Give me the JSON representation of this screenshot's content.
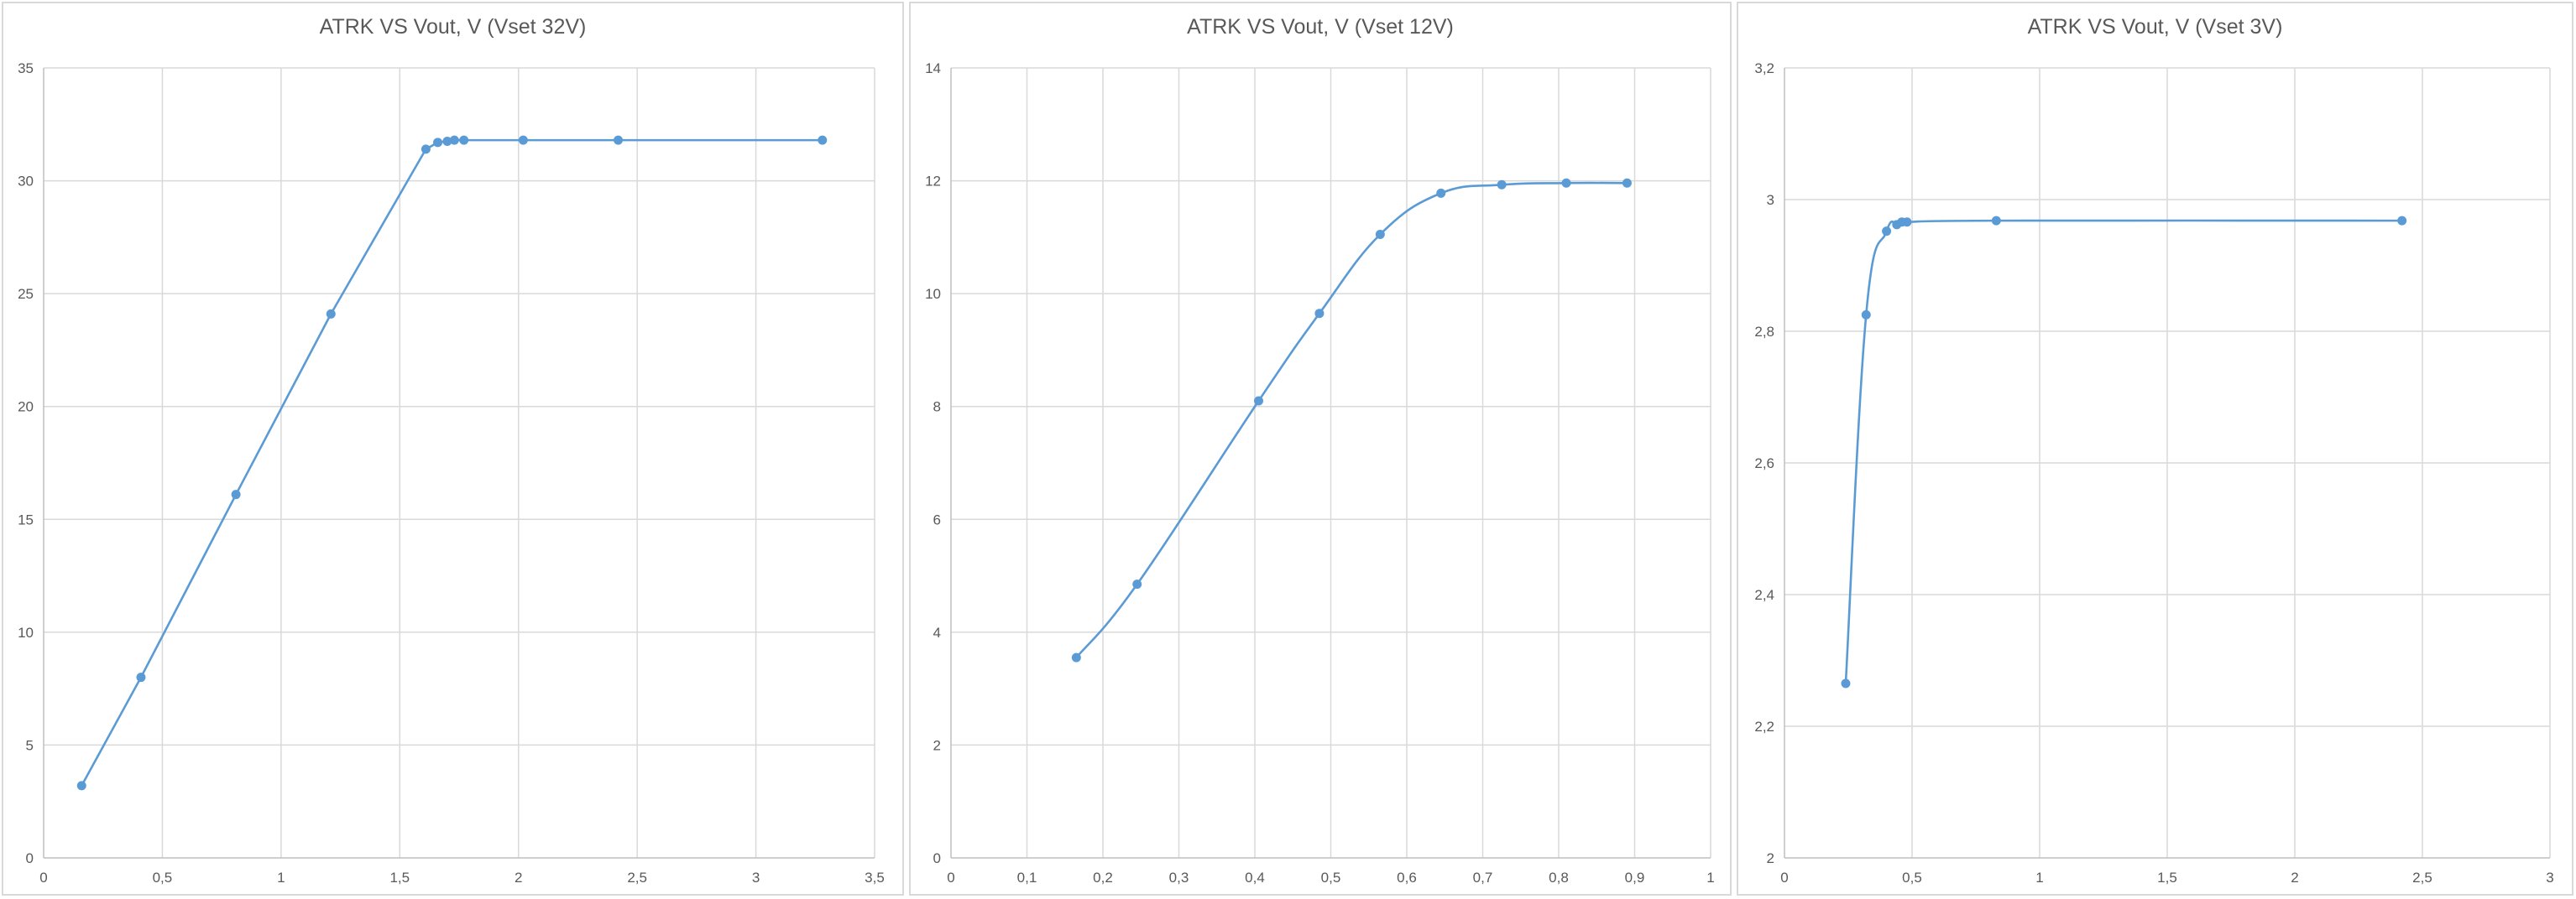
{
  "chart_data": [
    {
      "type": "line",
      "smooth": false,
      "title": "ATRK VS Vout, V (Vset 32V)",
      "xlabel": "",
      "ylabel": "",
      "xlim": [
        0,
        3.5
      ],
      "ylim": [
        0,
        35
      ],
      "xticks": [
        0,
        0.5,
        1,
        1.5,
        2,
        2.5,
        3,
        3.5
      ],
      "yticks": [
        0,
        5,
        10,
        15,
        20,
        25,
        30,
        35
      ],
      "xtick_labels": [
        "0",
        "0,5",
        "1",
        "1,5",
        "2",
        "2,5",
        "3",
        "3,5"
      ],
      "ytick_labels": [
        "0",
        "5",
        "10",
        "15",
        "20",
        "25",
        "30",
        "35"
      ],
      "grid": true,
      "legend": false,
      "color": "#5b9bd5",
      "series": [
        {
          "x": [
            0.16,
            0.41,
            0.81,
            1.21,
            1.61,
            1.66,
            1.7,
            1.73,
            1.77,
            2.02,
            2.42,
            3.28
          ],
          "y": [
            3.2,
            8.0,
            16.1,
            24.1,
            31.4,
            31.7,
            31.75,
            31.8,
            31.8,
            31.8,
            31.8,
            31.8
          ]
        }
      ]
    },
    {
      "type": "line",
      "smooth": true,
      "title": "ATRK VS Vout, V (Vset 12V)",
      "xlabel": "",
      "ylabel": "",
      "xlim": [
        0,
        1
      ],
      "ylim": [
        0,
        14
      ],
      "xticks": [
        0,
        0.1,
        0.2,
        0.3,
        0.4,
        0.5,
        0.6,
        0.7,
        0.8,
        0.9,
        1
      ],
      "yticks": [
        0,
        2,
        4,
        6,
        8,
        10,
        12,
        14
      ],
      "xtick_labels": [
        "0",
        "0,1",
        "0,2",
        "0,3",
        "0,4",
        "0,5",
        "0,6",
        "0,7",
        "0,8",
        "0,9",
        "1"
      ],
      "ytick_labels": [
        "0",
        "2",
        "4",
        "6",
        "8",
        "10",
        "12",
        "14"
      ],
      "grid": true,
      "legend": false,
      "color": "#5b9bd5",
      "series": [
        {
          "x": [
            0.165,
            0.245,
            0.405,
            0.485,
            0.565,
            0.645,
            0.725,
            0.81,
            0.89
          ],
          "y": [
            3.55,
            4.85,
            8.1,
            9.65,
            11.05,
            11.78,
            11.93,
            11.96,
            11.96
          ]
        }
      ]
    },
    {
      "type": "line",
      "smooth": true,
      "title": "ATRK VS Vout, V (Vset 3V)",
      "xlabel": "",
      "ylabel": "",
      "xlim": [
        0,
        3
      ],
      "ylim": [
        2,
        3.2
      ],
      "xticks": [
        0,
        0.5,
        1,
        1.5,
        2,
        2.5,
        3
      ],
      "yticks": [
        2,
        2.2,
        2.4,
        2.6,
        2.8,
        3,
        3.2
      ],
      "xtick_labels": [
        "0",
        "0,5",
        "1",
        "1,5",
        "2",
        "2,5",
        "3"
      ],
      "ytick_labels": [
        "2",
        "2,2",
        "2,4",
        "2,6",
        "2,8",
        "3",
        "3,2"
      ],
      "grid": true,
      "legend": false,
      "color": "#5b9bd5",
      "series": [
        {
          "x": [
            0.24,
            0.32,
            0.4,
            0.44,
            0.46,
            0.48,
            0.83,
            2.42
          ],
          "y": [
            2.265,
            2.825,
            2.952,
            2.962,
            2.966,
            2.966,
            2.968,
            2.968
          ]
        }
      ]
    }
  ]
}
